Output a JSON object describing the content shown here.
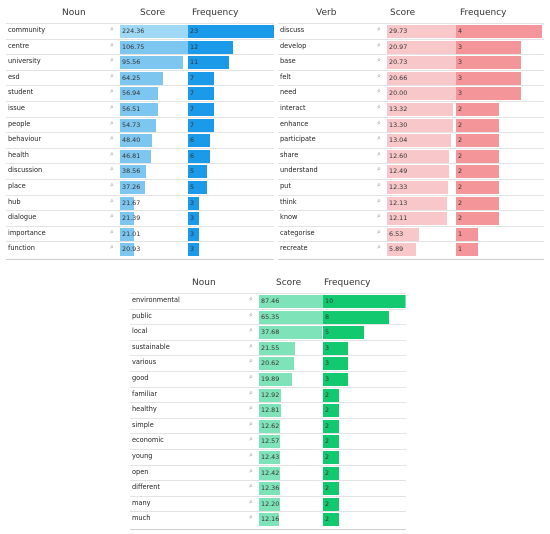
{
  "tables": [
    {
      "name": "noun-table",
      "headers": {
        "word": "Noun",
        "score": "Score",
        "freq": "Frequency"
      },
      "colors": {
        "score_max": "#9fd8f5",
        "score": "#7cc6f0",
        "freq": "#1a9ae8"
      },
      "score_max": 224.36,
      "freq_max": 23,
      "rows": [
        {
          "word": "community",
          "score": "224.36",
          "freq": "23"
        },
        {
          "word": "centre",
          "score": "106.75",
          "freq": "12"
        },
        {
          "word": "university",
          "score": "95.56",
          "freq": "11"
        },
        {
          "word": "esd",
          "score": "64.25",
          "freq": "7"
        },
        {
          "word": "student",
          "score": "56.94",
          "freq": "7"
        },
        {
          "word": "issue",
          "score": "56.51",
          "freq": "7"
        },
        {
          "word": "people",
          "score": "54.73",
          "freq": "7"
        },
        {
          "word": "behaviour",
          "score": "48.40",
          "freq": "6"
        },
        {
          "word": "health",
          "score": "46.81",
          "freq": "6"
        },
        {
          "word": "discussion",
          "score": "38.56",
          "freq": "5"
        },
        {
          "word": "place",
          "score": "37.26",
          "freq": "5"
        },
        {
          "word": "hub",
          "score": "21.67",
          "freq": "3"
        },
        {
          "word": "dialogue",
          "score": "21.39",
          "freq": "3"
        },
        {
          "word": "importance",
          "score": "21.01",
          "freq": "3"
        },
        {
          "word": "function",
          "score": "20.93",
          "freq": "3"
        }
      ]
    },
    {
      "name": "verb-table",
      "headers": {
        "word": "Verb",
        "score": "Score",
        "freq": "Frequency"
      },
      "colors": {
        "score_max": "#f8c7ca",
        "score": "#f8c7ca",
        "freq": "#f4959a"
      },
      "score_max": 29.73,
      "freq_max": 4,
      "rows": [
        {
          "word": "discuss",
          "score": "29.73",
          "freq": "4"
        },
        {
          "word": "develop",
          "score": "20.97",
          "freq": "3"
        },
        {
          "word": "base",
          "score": "20.73",
          "freq": "3"
        },
        {
          "word": "felt",
          "score": "20.66",
          "freq": "3"
        },
        {
          "word": "need",
          "score": "20.00",
          "freq": "3"
        },
        {
          "word": "interact",
          "score": "13.32",
          "freq": "2"
        },
        {
          "word": "enhance",
          "score": "13.30",
          "freq": "2"
        },
        {
          "word": "participate",
          "score": "13.04",
          "freq": "2"
        },
        {
          "word": "share",
          "score": "12.60",
          "freq": "2"
        },
        {
          "word": "understand",
          "score": "12.49",
          "freq": "2"
        },
        {
          "word": "put",
          "score": "12.33",
          "freq": "2"
        },
        {
          "word": "think",
          "score": "12.13",
          "freq": "2"
        },
        {
          "word": "know",
          "score": "12.11",
          "freq": "2"
        },
        {
          "word": "categorise",
          "score": "6.53",
          "freq": "1"
        },
        {
          "word": "recreate",
          "score": "5.89",
          "freq": "1"
        }
      ]
    },
    {
      "name": "adjective-table",
      "headers": {
        "word": "Noun",
        "score": "Score",
        "freq": "Frequency"
      },
      "colors": {
        "score_max": "#7fe3b9",
        "score": "#7fe3b9",
        "freq": "#12c96f"
      },
      "score_max": 87.46,
      "freq_max": 10,
      "rows": [
        {
          "word": "environmental",
          "score": "87.46",
          "freq": "10"
        },
        {
          "word": "public",
          "score": "65.35",
          "freq": "8"
        },
        {
          "word": "local",
          "score": "37.68",
          "freq": "5"
        },
        {
          "word": "sustainable",
          "score": "21.55",
          "freq": "3"
        },
        {
          "word": "various",
          "score": "20.62",
          "freq": "3"
        },
        {
          "word": "good",
          "score": "19.89",
          "freq": "3"
        },
        {
          "word": "familiar",
          "score": "12.92",
          "freq": "2"
        },
        {
          "word": "healthy",
          "score": "12.81",
          "freq": "2"
        },
        {
          "word": "simple",
          "score": "12.62",
          "freq": "2"
        },
        {
          "word": "economic",
          "score": "12.57",
          "freq": "2"
        },
        {
          "word": "young",
          "score": "12.43",
          "freq": "2"
        },
        {
          "word": "open",
          "score": "12.42",
          "freq": "2"
        },
        {
          "word": "different",
          "score": "12.36",
          "freq": "2"
        },
        {
          "word": "many",
          "score": "12.20",
          "freq": "2"
        },
        {
          "word": "much",
          "score": "12.16",
          "freq": "2"
        }
      ]
    }
  ]
}
